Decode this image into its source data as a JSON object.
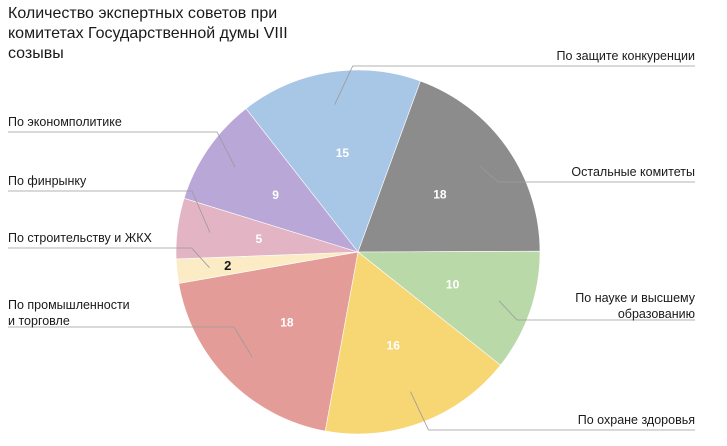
{
  "chart_data": {
    "type": "pie",
    "title_lines": [
      "Количество экспертных советов при",
      "комитетах Государственной думы VIII",
      "созывы"
    ],
    "slices": [
      {
        "label": "По защите конкуренции",
        "value": 15,
        "color": "#a8c6e6"
      },
      {
        "label": "Остальные комитеты",
        "value": 18,
        "color": "#8c8c8c"
      },
      {
        "label": "По науке и высшему образованию",
        "value": 10,
        "color": "#b9d9a8"
      },
      {
        "label": "По охране здоровья",
        "value": 16,
        "color": "#f7d774"
      },
      {
        "label": "По промышленности и торговле",
        "value": 18,
        "color": "#e39c98"
      },
      {
        "label": "По строительству и ЖКХ",
        "value": 2,
        "color": "#fbecc6"
      },
      {
        "label": "По финрынку",
        "value": 5,
        "color": "#e3b4c4"
      },
      {
        "label": "По экономполитике",
        "value": 9,
        "color": "#b9a7d8"
      }
    ],
    "legend_placement": "callouts around pie"
  }
}
